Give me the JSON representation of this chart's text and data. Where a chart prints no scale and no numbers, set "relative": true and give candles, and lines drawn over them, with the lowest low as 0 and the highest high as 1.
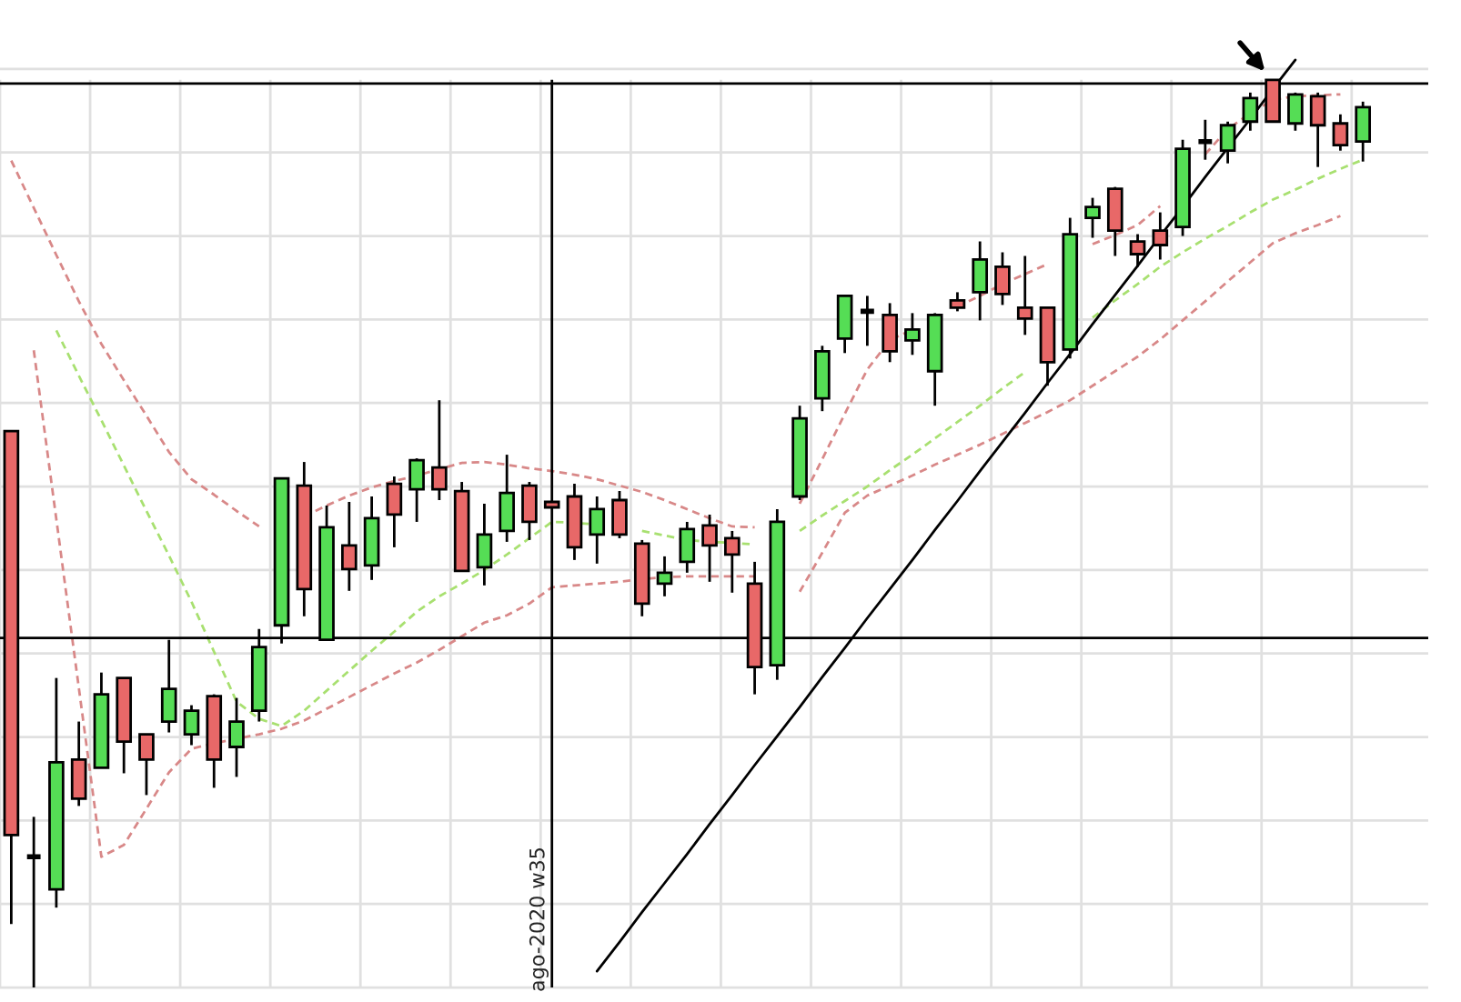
{
  "chart_data": {
    "type": "candlestick",
    "relative": true,
    "grid": true,
    "tick_labels": false,
    "categories": [
      null,
      null,
      null,
      null,
      null,
      null,
      null,
      null,
      null,
      null,
      null,
      null,
      null,
      null,
      null,
      null,
      null,
      null,
      null,
      null,
      null,
      null,
      null,
      null,
      null,
      null,
      null,
      null,
      null,
      null,
      null,
      null,
      null,
      null,
      null,
      null,
      null,
      null,
      null,
      null,
      null,
      null,
      null,
      null,
      null,
      null,
      null,
      null,
      null,
      null,
      null,
      null,
      null,
      null,
      null,
      null,
      null,
      null,
      null,
      null,
      null
    ],
    "ohlc": [
      [
        0.613,
        0.613,
        0.07,
        0.168
      ],
      [
        0.144,
        0.188,
        0,
        0.144
      ],
      [
        0.108,
        0.341,
        0.088,
        0.248
      ],
      [
        0.251,
        0.293,
        0.2,
        0.208
      ],
      [
        0.242,
        0.347,
        0.242,
        0.323
      ],
      [
        0.341,
        0.341,
        0.236,
        0.271
      ],
      [
        0.279,
        0.279,
        0.212,
        0.251
      ],
      [
        0.293,
        0.383,
        0.281,
        0.329
      ],
      [
        0.279,
        0.311,
        0.267,
        0.305
      ],
      [
        0.321,
        0.323,
        0.22,
        0.251
      ],
      [
        0.265,
        0.319,
        0.232,
        0.293
      ],
      [
        0.305,
        0.395,
        0.293,
        0.375
      ],
      [
        0.399,
        0.561,
        0.379,
        0.561
      ],
      [
        0.553,
        0.579,
        0.409,
        0.439
      ],
      [
        0.383,
        0.531,
        0.383,
        0.507
      ],
      [
        0.487,
        0.535,
        0.437,
        0.461
      ],
      [
        0.465,
        0.541,
        0.449,
        0.517
      ],
      [
        0.555,
        0.563,
        0.485,
        0.521
      ],
      [
        0.549,
        0.583,
        0.513,
        0.581
      ],
      [
        0.573,
        0.647,
        0.537,
        0.549
      ],
      [
        0.547,
        0.557,
        0.459,
        0.459
      ],
      [
        0.463,
        0.533,
        0.443,
        0.499
      ],
      [
        0.503,
        0.587,
        0.491,
        0.545
      ],
      [
        0.553,
        0.557,
        0.493,
        0.513
      ],
      [
        0.535,
        0.535,
        0.529,
        0.529
      ],
      [
        0.541,
        0.555,
        0.471,
        0.485
      ],
      [
        0.499,
        0.541,
        0.467,
        0.527
      ],
      [
        0.537,
        0.547,
        0.495,
        0.499
      ],
      [
        0.489,
        0.493,
        0.409,
        0.423
      ],
      [
        0.445,
        0.475,
        0.431,
        0.457
      ],
      [
        0.469,
        0.513,
        0.457,
        0.505
      ],
      [
        0.509,
        0.521,
        0.447,
        0.487
      ],
      [
        0.495,
        0.503,
        0.435,
        0.477
      ],
      [
        0.445,
        0.469,
        0.323,
        0.353
      ],
      [
        0.355,
        0.527,
        0.339,
        0.513
      ],
      [
        0.541,
        0.641,
        0.537,
        0.627
      ],
      [
        0.649,
        0.707,
        0.635,
        0.701
      ],
      [
        0.715,
        0.762,
        0.699,
        0.762
      ],
      [
        0.745,
        0.762,
        0.707,
        0.745
      ],
      [
        0.741,
        0.754,
        0.689,
        0.701
      ],
      [
        0.713,
        0.743,
        0.697,
        0.725
      ],
      [
        0.679,
        0.743,
        0.641,
        0.741
      ],
      [
        0.757,
        0.766,
        0.745,
        0.749
      ],
      [
        0.766,
        0.822,
        0.735,
        0.802
      ],
      [
        0.794,
        0.81,
        0.752,
        0.764
      ],
      [
        0.749,
        0.806,
        0.719,
        0.737
      ],
      [
        0.749,
        0.749,
        0.663,
        0.689
      ],
      [
        0.703,
        0.848,
        0.693,
        0.83
      ],
      [
        0.848,
        0.87,
        0.826,
        0.86
      ],
      [
        0.88,
        0.882,
        0.806,
        0.834
      ],
      [
        0.822,
        0.83,
        0.794,
        0.808
      ],
      [
        0.834,
        0.854,
        0.802,
        0.818
      ],
      [
        0.838,
        0.934,
        0.828,
        0.924
      ],
      [
        0.932,
        0.956,
        0.912,
        0.932
      ],
      [
        0.922,
        0.954,
        0.908,
        0.95
      ],
      [
        0.954,
        0.986,
        0.944,
        0.98
      ],
      [
        1,
        1,
        0.954,
        0.954
      ],
      [
        0.952,
        0.986,
        0.944,
        0.984
      ],
      [
        0.982,
        0.986,
        0.904,
        0.95
      ],
      [
        0.952,
        0.962,
        0.922,
        0.928
      ],
      [
        0.932,
        0.976,
        0.91,
        0.97
      ]
    ],
    "colors": [
      "#e86868",
      "#000000",
      "#55dd55",
      "#e86868",
      "#55dd55",
      "#e86868",
      "#e86868",
      "#55dd55",
      "#55dd55",
      "#e86868",
      "#55dd55",
      "#55dd55",
      "#55dd55",
      "#e86868",
      "#55dd55",
      "#e86868",
      "#55dd55",
      "#e86868",
      "#55dd55",
      "#e86868",
      "#e86868",
      "#55dd55",
      "#55dd55",
      "#e86868",
      "#e86868",
      "#e86868",
      "#55dd55",
      "#e86868",
      "#e86868",
      "#55dd55",
      "#55dd55",
      "#e86868",
      "#e86868",
      "#e86868",
      "#55dd55",
      "#55dd55",
      "#55dd55",
      "#55dd55",
      "#000000",
      "#e86868",
      "#55dd55",
      "#55dd55",
      "#e86868",
      "#55dd55",
      "#e86868",
      "#e86868",
      "#e86868",
      "#55dd55",
      "#55dd55",
      "#e86868",
      "#e86868",
      "#e86868",
      "#55dd55",
      "#000000",
      "#55dd55",
      "#55dd55",
      "#e86868",
      "#55dd55",
      "#e86868",
      "#e86868",
      "#55dd55"
    ],
    "series": [
      {
        "type": "line",
        "color": "#a8e070",
        "line_style": "dashed",
        "values": [
          null,
          null,
          0.724,
          0.674,
          0.625,
          0.575,
          0.525,
          0.476,
          0.425,
          0.37,
          0.315,
          0.296,
          0.288,
          0.305,
          0.327,
          0.349,
          0.371,
          0.392,
          0.414,
          0.431,
          0.445,
          0.46,
          0.477,
          0.495,
          0.513,
          0.512,
          0.51,
          null,
          0.503,
          0.498,
          0.493,
          0.491,
          0.49,
          0.488,
          null,
          0.503,
          0.52,
          0.536,
          0.552,
          0.57,
          0.587,
          0.605,
          0.623,
          0.641,
          0.66,
          0.678,
          null,
          null,
          0.738,
          0.757,
          0.775,
          0.794,
          0.81,
          0.825,
          0.839,
          0.854,
          0.868,
          0.879,
          0.891,
          0.902,
          0.912
        ]
      },
      {
        "type": "line",
        "color": "#d88888",
        "line_style": "dashed",
        "values": [
          0.911,
          0.859,
          0.807,
          0.756,
          0.709,
          0.669,
          0.63,
          0.59,
          0.56,
          0.543,
          0.525,
          0.508,
          null,
          0.519,
          0.531,
          0.542,
          0.551,
          0.558,
          0.564,
          0.571,
          0.578,
          0.579,
          0.576,
          0.572,
          0.569,
          0.565,
          0.56,
          0.553,
          0.546,
          0.537,
          0.527,
          0.517,
          0.508,
          0.507,
          null,
          0.533,
          0.582,
          0.632,
          0.681,
          0.713,
          0.725,
          null,
          0.75,
          0.762,
          0.775,
          0.786,
          0.797,
          null,
          0.819,
          0.829,
          0.84,
          0.861,
          null,
          0.918,
          0.946,
          0.963,
          0.978,
          0.982,
          0.983,
          0.984,
          null
        ]
      },
      {
        "type": "line",
        "color": "#d88888",
        "line_style": "dashed",
        "values": [
          null,
          0.702,
          0.516,
          0.33,
          0.144,
          0.157,
          0.197,
          0.237,
          0.263,
          0.269,
          0.274,
          0.279,
          0.285,
          0.294,
          0.307,
          0.32,
          0.333,
          0.346,
          0.358,
          0.372,
          0.387,
          0.402,
          0.41,
          0.423,
          0.441,
          0.443,
          0.445,
          0.447,
          0.45,
          0.452,
          0.453,
          0.453,
          0.453,
          0.453,
          null,
          0.436,
          0.479,
          0.523,
          0.542,
          0.553,
          0.564,
          0.576,
          0.587,
          0.598,
          0.61,
          0.622,
          0.634,
          0.647,
          0.663,
          0.679,
          0.695,
          0.714,
          0.735,
          0.756,
          0.778,
          0.799,
          0.82,
          0.831,
          0.84,
          0.85,
          null
        ]
      },
      {
        "type": "line",
        "color": "#000000",
        "line_style": "solid",
        "values": [
          null,
          null,
          null,
          null,
          null,
          null,
          null,
          null,
          null,
          null,
          null,
          null,
          null,
          null,
          null,
          null,
          null,
          null,
          null,
          null,
          null,
          null,
          null,
          null,
          null,
          null,
          0.018,
          0.05,
          0.083,
          0.115,
          0.147,
          0.18,
          0.212,
          0.245,
          0.277,
          0.309,
          0.342,
          0.374,
          0.407,
          0.439,
          0.471,
          0.504,
          0.536,
          0.569,
          0.601,
          0.633,
          0.666,
          0.698,
          0.731,
          0.763,
          0.795,
          0.828,
          0.86,
          0.893,
          0.925,
          0.957,
          0.99,
          1.022,
          null,
          null,
          null
        ]
      }
    ],
    "ref_lines": [
      {
        "axis": "y",
        "value": 0.996,
        "color": "#000000"
      },
      {
        "axis": "y",
        "value": 0.385,
        "color": "#000000"
      }
    ],
    "annotations": [
      "ago-2020 w35"
    ]
  }
}
